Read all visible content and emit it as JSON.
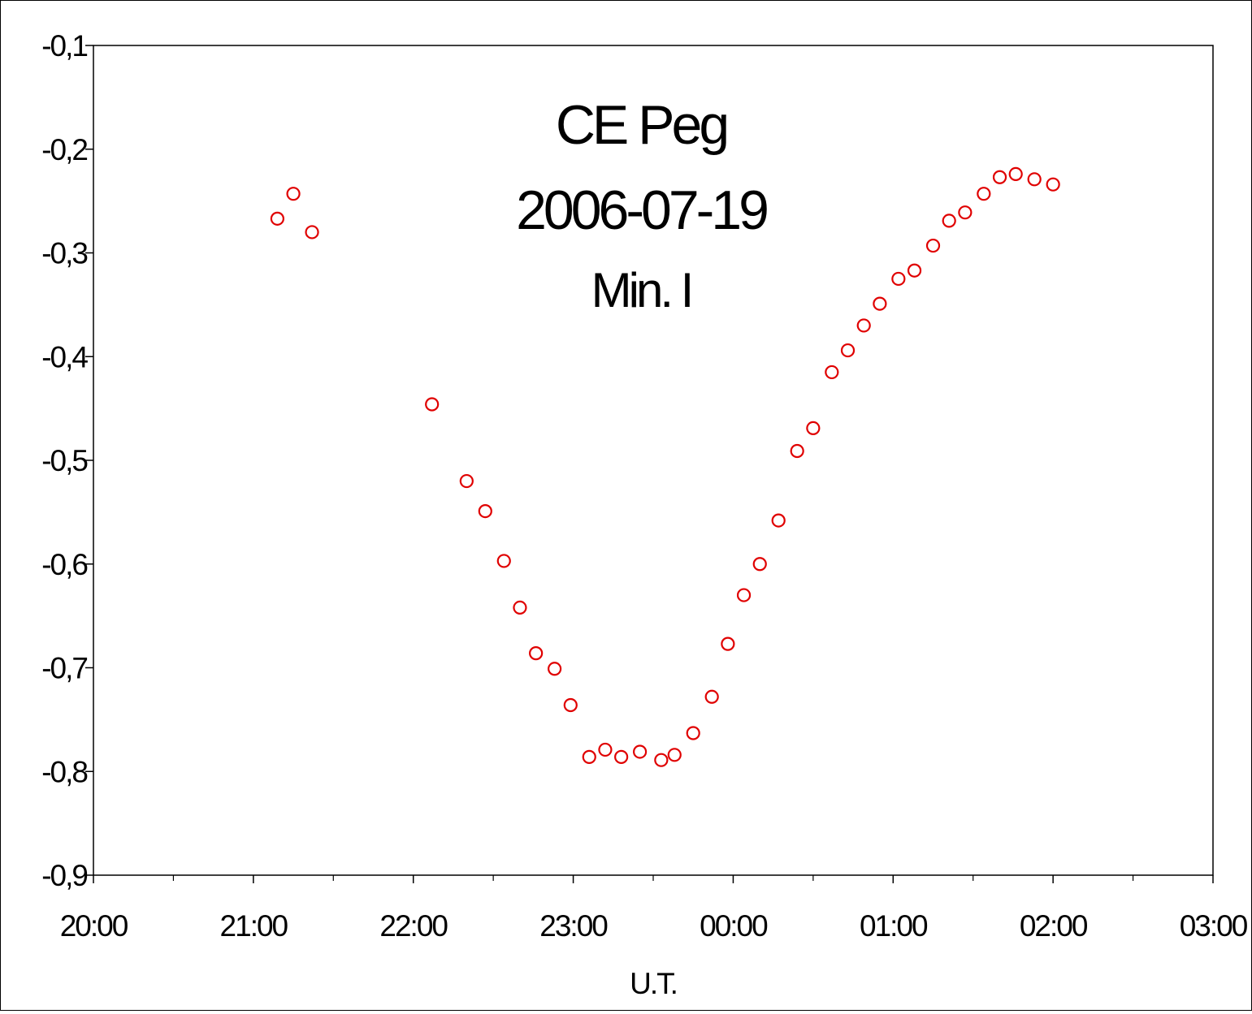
{
  "chart_data": {
    "type": "scatter",
    "title_lines": [
      "CE Peg",
      "2006-07-19",
      "Min. I"
    ],
    "xlabel": "U.T.",
    "ylabel": "",
    "x_ticks": [
      "20:00",
      "21:00",
      "22:00",
      "23:00",
      "00:00",
      "01:00",
      "02:00",
      "03:00"
    ],
    "y_ticks": [
      "-0,1",
      "-0,2",
      "-0,3",
      "-0,4",
      "-0,5",
      "-0,6",
      "-0,7",
      "-0,8",
      "-0,9"
    ],
    "xlim": [
      "20:00",
      "03:00"
    ],
    "ylim": [
      -0.9,
      -0.1
    ],
    "y_axis_reversed": false,
    "grid": false,
    "legend": "none",
    "marker_color": "#e00000",
    "marker": "open-circle",
    "series": [
      {
        "points": [
          {
            "x": "21:09",
            "y": -0.267
          },
          {
            "x": "21:15",
            "y": -0.243
          },
          {
            "x": "21:22",
            "y": -0.28
          },
          {
            "x": "22:07",
            "y": -0.446
          },
          {
            "x": "22:20",
            "y": -0.52
          },
          {
            "x": "22:27",
            "y": -0.549
          },
          {
            "x": "22:34",
            "y": -0.597
          },
          {
            "x": "22:40",
            "y": -0.642
          },
          {
            "x": "22:46",
            "y": -0.686
          },
          {
            "x": "22:53",
            "y": -0.701
          },
          {
            "x": "22:59",
            "y": -0.736
          },
          {
            "x": "23:06",
            "y": -0.786
          },
          {
            "x": "23:12",
            "y": -0.779
          },
          {
            "x": "23:18",
            "y": -0.786
          },
          {
            "x": "23:25",
            "y": -0.781
          },
          {
            "x": "23:33",
            "y": -0.789
          },
          {
            "x": "23:38",
            "y": -0.784
          },
          {
            "x": "23:45",
            "y": -0.763
          },
          {
            "x": "23:52",
            "y": -0.728
          },
          {
            "x": "23:58",
            "y": -0.677
          },
          {
            "x": "00:04",
            "y": -0.63
          },
          {
            "x": "00:10",
            "y": -0.6
          },
          {
            "x": "00:17",
            "y": -0.558
          },
          {
            "x": "00:24",
            "y": -0.491
          },
          {
            "x": "00:30",
            "y": -0.469
          },
          {
            "x": "00:37",
            "y": -0.415
          },
          {
            "x": "00:43",
            "y": -0.394
          },
          {
            "x": "00:49",
            "y": -0.37
          },
          {
            "x": "00:55",
            "y": -0.349
          },
          {
            "x": "01:02",
            "y": -0.325
          },
          {
            "x": "01:08",
            "y": -0.317
          },
          {
            "x": "01:15",
            "y": -0.293
          },
          {
            "x": "01:21",
            "y": -0.269
          },
          {
            "x": "01:27",
            "y": -0.261
          },
          {
            "x": "01:34",
            "y": -0.243
          },
          {
            "x": "01:40",
            "y": -0.227
          },
          {
            "x": "01:46",
            "y": -0.224
          },
          {
            "x": "01:53",
            "y": -0.229
          },
          {
            "x": "02:00",
            "y": -0.234
          }
        ]
      }
    ]
  }
}
